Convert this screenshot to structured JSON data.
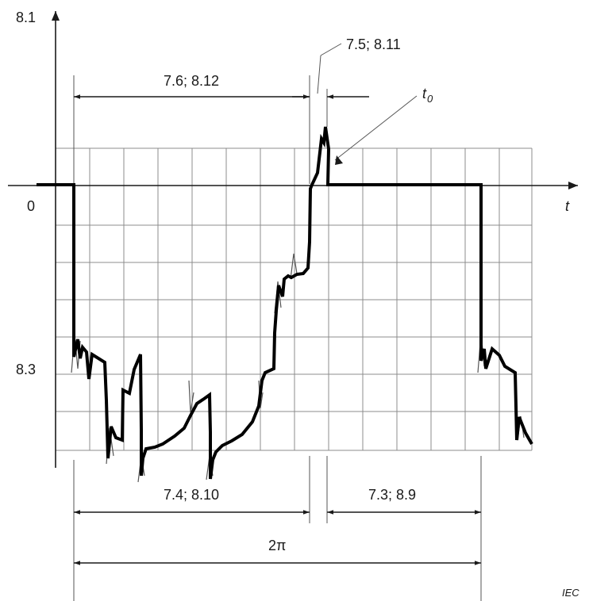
{
  "axes": {
    "y_label": "8.1",
    "x_label": "t",
    "origin_label": "0",
    "level_label": "8.3"
  },
  "dimensions": {
    "top_span": "7.6; 8.12",
    "rise": "7.5; 8.11",
    "t0_main": "t",
    "t0_sub": "0",
    "bottom_left": "7.4; 8.10",
    "bottom_right": "7.3; 8.9",
    "period": "2π"
  },
  "footer": {
    "credit": "IEC"
  },
  "colors": {
    "waveform": "#000000",
    "grid": "#8c8c8c",
    "text": "#1a1a1a"
  }
}
